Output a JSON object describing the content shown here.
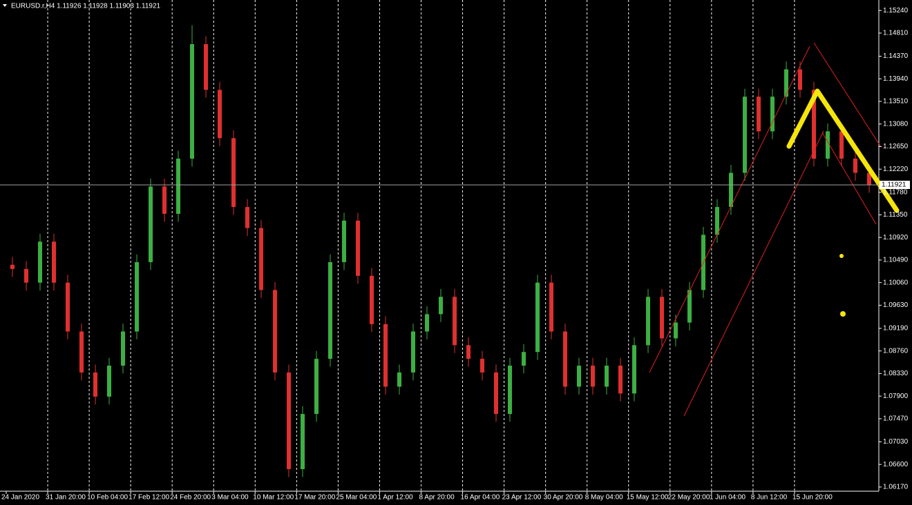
{
  "chart_data": {
    "type": "candlestick",
    "title": "EURUSD.r,H4  1.11926 1.11928 1.11903 1.11921",
    "up_color": "#3cb043",
    "down_color": "#e03030",
    "background": "#000000",
    "ylim": [
      1.0609,
      1.1544
    ],
    "yticks": [
      {
        "value": 1.1524,
        "label": "1.15240"
      },
      {
        "value": 1.1481,
        "label": "1.14810"
      },
      {
        "value": 1.1437,
        "label": "1.14370"
      },
      {
        "value": 1.1394,
        "label": "1.13940"
      },
      {
        "value": 1.1351,
        "label": "1.13510"
      },
      {
        "value": 1.1308,
        "label": "1.13080"
      },
      {
        "value": 1.1265,
        "label": "1.12650"
      },
      {
        "value": 1.1222,
        "label": "1.12220"
      },
      {
        "value": 1.1178,
        "label": "1.11780"
      },
      {
        "value": 1.1135,
        "label": "1.11350"
      },
      {
        "value": 1.1092,
        "label": "1.10920"
      },
      {
        "value": 1.1049,
        "label": "1.10490"
      },
      {
        "value": 1.1006,
        "label": "1.10060"
      },
      {
        "value": 1.0963,
        "label": "1.09630"
      },
      {
        "value": 1.0919,
        "label": "1.09190"
      },
      {
        "value": 1.0876,
        "label": "1.08760"
      },
      {
        "value": 1.0833,
        "label": "1.08330"
      },
      {
        "value": 1.079,
        "label": "1.07900"
      },
      {
        "value": 1.0747,
        "label": "1.07470"
      },
      {
        "value": 1.0703,
        "label": "1.07030"
      },
      {
        "value": 1.066,
        "label": "1.06600"
      },
      {
        "value": 1.0617,
        "label": "1.06170"
      }
    ],
    "current_price": {
      "value": 1.11921,
      "label": "1.11921"
    },
    "x_labels": [
      "24 Jan 2020",
      "31 Jan 20:00",
      "10 Feb 04:00",
      "17 Feb 12:00",
      "24 Feb 20:00",
      "3 Mar 04:00",
      "10 Mar 12:00",
      "17 Mar 20:00",
      "25 Mar 04:00",
      "1 Apr 12:00",
      "8 Apr 20:00",
      "16 Apr 04:00",
      "23 Apr 12:00",
      "30 Apr 20:00",
      "8 May 04:00",
      "15 May 12:00",
      "22 May 20:00",
      "1 Jun 04:00",
      "8 Jun 12:00",
      "15 Jun 20:00"
    ],
    "open": [
      1.104,
      1.1032,
      1.1006,
      1.1084,
      1.1006,
      1.0913,
      1.0835,
      1.0789,
      1.0848,
      1.0913,
      1.1045,
      1.1189,
      1.1137,
      1.1242,
      1.146,
      1.1373,
      1.1281,
      1.115,
      1.111,
      1.0992,
      1.0835,
      1.0651,
      1.0756,
      1.0861,
      1.1045,
      1.1124,
      1.1019,
      1.0927,
      1.0808,
      1.0835,
      1.0913,
      1.0946,
      1.0979,
      1.0887,
      1.0861,
      1.0835,
      1.0756,
      1.0848,
      1.0874,
      1.1006,
      1.0913,
      1.0808,
      1.0848,
      1.0808,
      1.0848,
      1.0795,
      1.0887,
      1.0979,
      1.09,
      1.093,
      1.0992,
      1.1097,
      1.115,
      1.1215,
      1.136,
      1.1294,
      1.136,
      1.1412,
      1.1373,
      1.1242,
      1.1294,
      1.1242,
      1.1215
    ],
    "high": [
      1.1055,
      1.1047,
      1.1099,
      1.1099,
      1.1021,
      1.0928,
      1.085,
      1.0863,
      1.0928,
      1.106,
      1.1204,
      1.1204,
      1.1257,
      1.1496,
      1.1475,
      1.1388,
      1.1296,
      1.1165,
      1.1125,
      1.1007,
      1.085,
      1.0771,
      1.0876,
      1.106,
      1.1139,
      1.1139,
      1.1034,
      1.0942,
      1.085,
      1.0928,
      1.0961,
      1.0994,
      1.0994,
      1.0902,
      1.0876,
      1.085,
      1.0863,
      1.0889,
      1.1021,
      1.1021,
      1.0928,
      1.0863,
      1.0863,
      1.0863,
      1.0863,
      1.0902,
      1.0994,
      1.0994,
      1.0945,
      1.1007,
      1.1112,
      1.1165,
      1.123,
      1.1375,
      1.1375,
      1.1375,
      1.1427,
      1.1427,
      1.1388,
      1.1309,
      1.1309,
      1.1257,
      1.123
    ],
    "low": [
      1.1017,
      1.0991,
      1.0991,
      1.0991,
      1.0898,
      1.082,
      1.0774,
      1.0774,
      1.0833,
      1.0898,
      1.103,
      1.1122,
      1.1122,
      1.1227,
      1.1358,
      1.1266,
      1.1135,
      1.1095,
      1.0977,
      1.082,
      1.0636,
      1.0636,
      1.0741,
      1.0846,
      1.103,
      1.1004,
      1.0912,
      1.0793,
      1.0793,
      1.082,
      1.0898,
      1.0931,
      1.0872,
      1.0846,
      1.082,
      1.0741,
      1.0741,
      1.0833,
      1.0859,
      1.0898,
      1.0793,
      1.0793,
      1.0793,
      1.0793,
      1.078,
      1.078,
      1.0872,
      1.0885,
      1.0885,
      1.0915,
      1.0977,
      1.1082,
      1.1135,
      1.12,
      1.1279,
      1.1279,
      1.1345,
      1.1358,
      1.1227,
      1.1227,
      1.1227,
      1.12,
      1.1177
    ],
    "close": [
      1.1032,
      1.1006,
      1.1084,
      1.1006,
      1.0913,
      1.0835,
      1.0789,
      1.0848,
      1.0913,
      1.1045,
      1.1189,
      1.1137,
      1.1242,
      1.146,
      1.1373,
      1.1281,
      1.115,
      1.111,
      1.0992,
      1.0835,
      1.0651,
      1.0756,
      1.0861,
      1.1045,
      1.1124,
      1.1019,
      1.0927,
      1.0808,
      1.0835,
      1.0913,
      1.0946,
      1.0979,
      1.0887,
      1.0861,
      1.0835,
      1.0756,
      1.0848,
      1.0874,
      1.1006,
      1.0913,
      1.0808,
      1.0848,
      1.0808,
      1.0848,
      1.0795,
      1.0887,
      1.0979,
      1.09,
      1.093,
      1.0992,
      1.1097,
      1.115,
      1.1215,
      1.136,
      1.1294,
      1.136,
      1.1412,
      1.1373,
      1.1242,
      1.1294,
      1.1242,
      1.1215,
      1.1192
    ]
  }
}
